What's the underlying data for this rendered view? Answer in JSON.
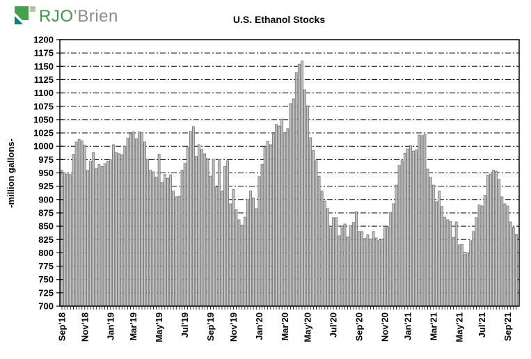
{
  "logo": {
    "text_primary": "RJO",
    "text_secondary": "’Brien",
    "colors": {
      "green": "#46a24a",
      "teal": "#00837b",
      "sage": "#b3c6a6",
      "text_green": "#3f9a44",
      "text_gray": "#8b8d87"
    }
  },
  "chart_data": {
    "type": "bar",
    "title": "U.S. Ethanol Stocks",
    "xlabel": "",
    "ylabel": "-million gallons-",
    "ylim": [
      700,
      1200
    ],
    "ytick_step": 25,
    "yticks": [
      700,
      725,
      750,
      775,
      800,
      825,
      850,
      875,
      900,
      925,
      950,
      975,
      1000,
      1025,
      1050,
      1075,
      1100,
      1125,
      1150,
      1175,
      1200
    ],
    "grid": "horizontal-dashed",
    "legend": "none",
    "bar_color": "#c3c3c3",
    "bar_border": "#6e6e6e",
    "x_major_labels": [
      "Sep'18",
      "Nov'18",
      "Jan'19",
      "Mar'19",
      "May'19",
      "Jul'19",
      "Sep'19",
      "Nov'19",
      "Jan'20",
      "Mar'20",
      "May'20",
      "Jul'20",
      "Sep'20",
      "Nov'20",
      "Jan'21",
      "Mar'21",
      "May'21",
      "Jul'21",
      "Sep'21"
    ],
    "x_major_indices": [
      0,
      8,
      17,
      25,
      34,
      43,
      52,
      60,
      69,
      78,
      86,
      95,
      104,
      113,
      121,
      130,
      139,
      147,
      156
    ],
    "x_unit": "weekly",
    "values": [
      955,
      950,
      948,
      947,
      985,
      1008,
      1013,
      1010,
      1002,
      955,
      972,
      988,
      958,
      966,
      962,
      967,
      972,
      975,
      1003,
      988,
      986,
      984,
      1000,
      1015,
      1023,
      1027,
      1014,
      1027,
      1026,
      1008,
      976,
      955,
      952,
      942,
      985,
      932,
      947,
      940,
      946,
      916,
      905,
      906,
      955,
      968,
      998,
      1028,
      1037,
      981,
      1003,
      994,
      986,
      977,
      944,
      976,
      924,
      975,
      916,
      962,
      973,
      892,
      919,
      881,
      862,
      852,
      867,
      900,
      916,
      903,
      883,
      943,
      966,
      999,
      1009,
      1003,
      1023,
      1041,
      1038,
      1051,
      1022,
      1033,
      1080,
      1089,
      1138,
      1154,
      1160,
      1106,
      1076,
      1016,
      992,
      973,
      944,
      916,
      897,
      883,
      847,
      866,
      866,
      832,
      851,
      854,
      830,
      851,
      857,
      877,
      840,
      840,
      827,
      834,
      826,
      840,
      828,
      823,
      826,
      847,
      848,
      876,
      892,
      927,
      964,
      973,
      987,
      995,
      1001,
      991,
      993,
      1021,
      1020,
      1022,
      957,
      942,
      927,
      896,
      916,
      887,
      867,
      862,
      859,
      829,
      858,
      815,
      816,
      797,
      800,
      823,
      840,
      866,
      890,
      888,
      908,
      945,
      948,
      955,
      953,
      938,
      905,
      892,
      888,
      858,
      848,
      835
    ]
  }
}
